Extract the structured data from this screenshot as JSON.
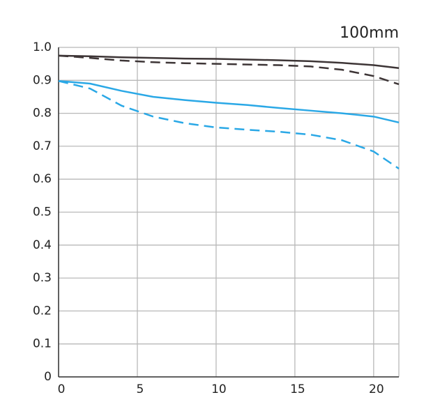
{
  "chart_data": {
    "type": "line",
    "title": "100mm",
    "x": [
      0,
      2,
      4,
      6,
      8,
      10,
      12,
      14,
      16,
      18,
      20,
      21.6
    ],
    "series": [
      {
        "color": "#3d3536",
        "dashed": false,
        "values": [
          0.975,
          0.973,
          0.97,
          0.968,
          0.966,
          0.965,
          0.963,
          0.961,
          0.958,
          0.953,
          0.946,
          0.937
        ]
      },
      {
        "color": "#3d3536",
        "dashed": true,
        "values": [
          0.975,
          0.968,
          0.96,
          0.955,
          0.952,
          0.95,
          0.948,
          0.946,
          0.942,
          0.932,
          0.913,
          0.888
        ]
      },
      {
        "color": "#2aa8e6",
        "dashed": false,
        "values": [
          0.898,
          0.89,
          0.868,
          0.85,
          0.84,
          0.832,
          0.825,
          0.816,
          0.808,
          0.8,
          0.79,
          0.772
        ]
      },
      {
        "color": "#2aa8e6",
        "dashed": true,
        "values": [
          0.898,
          0.875,
          0.823,
          0.79,
          0.77,
          0.757,
          0.75,
          0.744,
          0.735,
          0.718,
          0.684,
          0.632
        ]
      }
    ],
    "xlim": [
      0,
      21.6
    ],
    "xticks": [
      0,
      5,
      10,
      15,
      20
    ],
    "ylim": [
      0,
      1
    ],
    "yticks": [
      0,
      0.1,
      0.2,
      0.3,
      0.4,
      0.5,
      0.6,
      0.7,
      0.8,
      0.9,
      {
        "value": 1,
        "label": "1.0"
      }
    ],
    "grid": true
  }
}
